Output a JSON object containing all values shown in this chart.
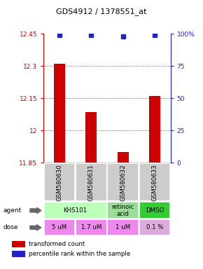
{
  "title": "GDS4912 / 1378551_at",
  "samples": [
    "GSM580630",
    "GSM580631",
    "GSM580632",
    "GSM580633"
  ],
  "bar_values": [
    12.31,
    12.085,
    11.9,
    12.16
  ],
  "percentile_values": [
    99,
    99,
    98,
    99
  ],
  "ylim": [
    11.85,
    12.45
  ],
  "yticks": [
    11.85,
    12.0,
    12.15,
    12.3,
    12.45
  ],
  "ytick_labels": [
    "11.85",
    "12",
    "12.15",
    "12.3",
    "12.45"
  ],
  "right_yticks": [
    0,
    25,
    50,
    75,
    100
  ],
  "right_ytick_labels": [
    "0",
    "25",
    "50",
    "75",
    "100%"
  ],
  "bar_color": "#cc0000",
  "dot_color": "#2222cc",
  "bar_width": 0.35,
  "agent_configs": [
    [
      0,
      1,
      "KHS101",
      "#bbffbb"
    ],
    [
      2,
      2,
      "retinoic\nacid",
      "#99dd99"
    ],
    [
      3,
      3,
      "DMSO",
      "#33cc33"
    ]
  ],
  "dose_labels": [
    "5 uM",
    "1.7 uM",
    "1 uM",
    "0.1 %"
  ],
  "dose_colors": [
    "#ee88ee",
    "#ee88ee",
    "#ee88ee",
    "#ddaadd"
  ],
  "sample_bg": "#cccccc",
  "grid_color": "#555555",
  "right_axis_color": "#2222cc",
  "left_axis_color": "#cc0000",
  "legend_red_label": "transformed count",
  "legend_blue_label": "percentile rank within the sample"
}
